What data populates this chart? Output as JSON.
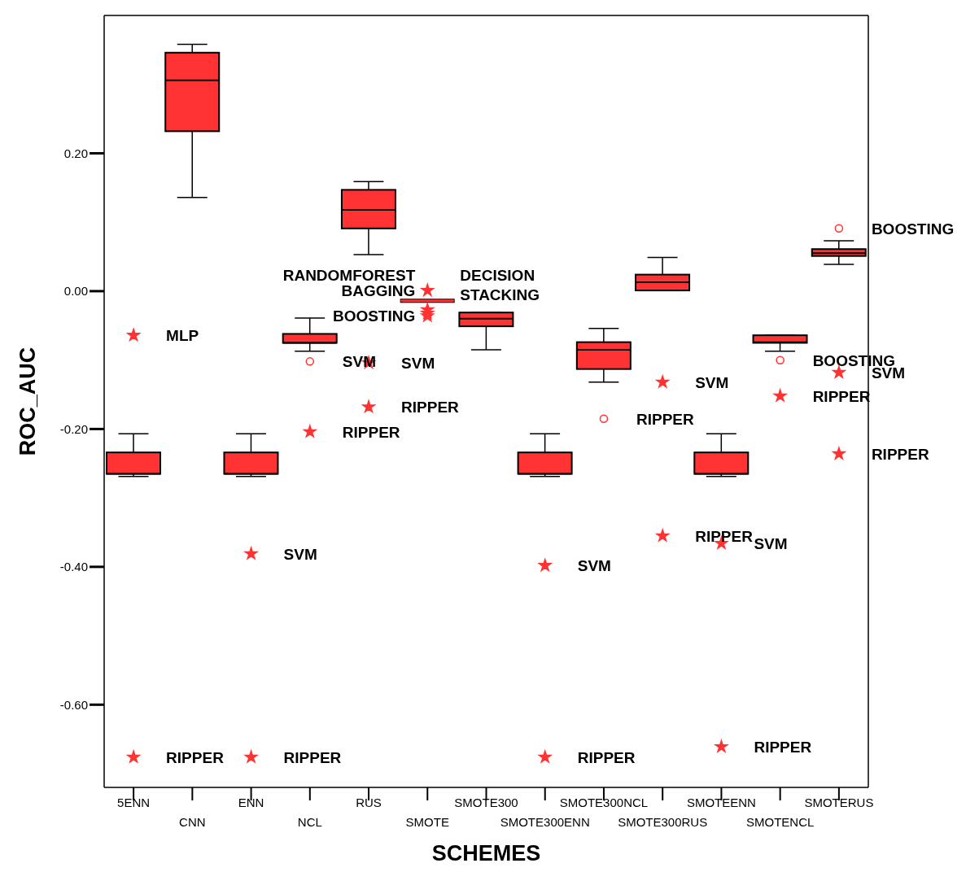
{
  "chart_data": {
    "type": "box",
    "xlabel": "SCHEMES",
    "ylabel": "ROC_AUC",
    "color": "#ff3333",
    "categories": [
      "5ENN",
      "CNN",
      "ENN",
      "NCL",
      "RUS",
      "SMOTE",
      "SMOTE300",
      "SMOTE300ENN",
      "SMOTE300NCL",
      "SMOTE300RUS",
      "SMOTEENN",
      "SMOTENCL",
      "SMOTERUS"
    ],
    "boxes": [
      {
        "low": -0.269,
        "q1": -0.265,
        "median": -0.265,
        "q3": -0.234,
        "high": -0.207
      },
      {
        "low": 0.136,
        "q1": 0.232,
        "median": 0.306,
        "q3": 0.346,
        "high": 0.358
      },
      {
        "low": -0.269,
        "q1": -0.265,
        "median": -0.265,
        "q3": -0.234,
        "high": -0.207
      },
      {
        "low": -0.087,
        "q1": -0.075,
        "median": -0.075,
        "q3": -0.062,
        "high": -0.039
      },
      {
        "low": 0.053,
        "q1": 0.091,
        "median": 0.118,
        "q3": 0.147,
        "high": 0.159
      },
      {
        "low": -0.014,
        "q1": -0.014,
        "median": -0.014,
        "q3": -0.014,
        "high": -0.014
      },
      {
        "low": -0.085,
        "q1": -0.051,
        "median": -0.04,
        "q3": -0.031,
        "high": -0.031
      },
      {
        "low": -0.269,
        "q1": -0.265,
        "median": -0.265,
        "q3": -0.234,
        "high": -0.207
      },
      {
        "low": -0.132,
        "q1": -0.113,
        "median": -0.085,
        "q3": -0.074,
        "high": -0.054
      },
      {
        "low": 0.001,
        "q1": 0.001,
        "median": 0.013,
        "q3": 0.024,
        "high": 0.049
      },
      {
        "low": -0.269,
        "q1": -0.265,
        "median": -0.265,
        "q3": -0.234,
        "high": -0.207
      },
      {
        "low": -0.087,
        "q1": -0.075,
        "median": -0.074,
        "q3": -0.064,
        "high": -0.064
      },
      {
        "low": 0.039,
        "q1": 0.051,
        "median": 0.055,
        "q3": 0.061,
        "high": 0.073
      }
    ],
    "series": [
      {
        "type": "scatter",
        "marker": "star",
        "color": "#ff3333",
        "x": [
          "5ENN",
          "5ENN",
          "ENN",
          "ENN",
          "NCL",
          "RUS",
          "RUS",
          "SMOTE",
          "SMOTE",
          "SMOTE",
          "SMOTE",
          "SMOTE300ENN",
          "SMOTE300ENN",
          "SMOTE300RUS",
          "SMOTE300RUS",
          "SMOTEENN",
          "SMOTEENN",
          "SMOTENCL",
          "SMOTERUS",
          "SMOTERUS"
        ],
        "values": [
          -0.064,
          -0.676,
          -0.381,
          -0.676,
          -0.204,
          -0.104,
          -0.168,
          0.001,
          -0.027,
          -0.032,
          -0.036,
          -0.398,
          -0.676,
          -0.132,
          -0.355,
          -0.366,
          -0.661,
          -0.152,
          -0.118,
          -0.236
        ]
      },
      {
        "type": "scatter",
        "marker": "circle",
        "color": "#ff3333",
        "x": [
          "NCL",
          "SMOTE300NCL",
          "SMOTENCL",
          "SMOTERUS"
        ],
        "values": [
          -0.102,
          -0.185,
          -0.1,
          0.091
        ]
      }
    ],
    "ylim": [
      -0.72,
      0.4
    ],
    "yticks": [
      {
        "value": 0.2,
        "label": "0.20"
      },
      {
        "value": 0.0,
        "label": "0.00"
      },
      {
        "value": -0.2,
        "label": "-0.20"
      },
      {
        "value": -0.4,
        "label": "-0.40"
      },
      {
        "value": -0.6,
        "label": "-0.60"
      }
    ],
    "annotations": [
      {
        "text": "MLP",
        "x": "5ENN",
        "y": -0.064
      },
      {
        "text": "RIPPER",
        "x": "5ENN",
        "y": -0.676
      },
      {
        "text": "SVM",
        "x": "ENN",
        "y": -0.381
      },
      {
        "text": "RIPPER",
        "x": "ENN",
        "y": -0.676
      },
      {
        "text": "SVM",
        "x": "NCL",
        "y": -0.102
      },
      {
        "text": "RIPPER",
        "x": "NCL",
        "y": -0.204
      },
      {
        "text": "SVM",
        "x": "RUS",
        "y": -0.104
      },
      {
        "text": "RIPPER",
        "x": "RUS",
        "y": -0.168
      },
      {
        "text": "BAGGING",
        "x": "SMOTE",
        "y": 0.001
      },
      {
        "text": "DECISION",
        "x": "SMOTE",
        "y": 0.001
      },
      {
        "text": "RANDOMFOREST",
        "x": "SMOTE",
        "y": 0.001
      },
      {
        "text": "STACKING",
        "x": "SMOTE",
        "y": -0.027
      },
      {
        "text": "BOOSTING",
        "x": "SMOTE",
        "y": -0.036
      },
      {
        "text": "SVM",
        "x": "SMOTE300ENN",
        "y": -0.398
      },
      {
        "text": "RIPPER",
        "x": "SMOTE300ENN",
        "y": -0.676
      },
      {
        "text": "RIPPER",
        "x": "SMOTE300NCL",
        "y": -0.185
      },
      {
        "text": "SVM",
        "x": "SMOTE300RUS",
        "y": -0.132
      },
      {
        "text": "RIPPER",
        "x": "SMOTE300RUS",
        "y": -0.355
      },
      {
        "text": "SVM",
        "x": "SMOTEENN",
        "y": -0.366
      },
      {
        "text": "RIPPER",
        "x": "SMOTEENN",
        "y": -0.661
      },
      {
        "text": "BOOSTING",
        "x": "SMOTENCL",
        "y": -0.1
      },
      {
        "text": "RIPPER",
        "x": "SMOTENCL",
        "y": -0.152
      },
      {
        "text": "BOOSTING",
        "x": "SMOTERUS",
        "y": 0.091
      },
      {
        "text": "SVM",
        "x": "SMOTERUS",
        "y": -0.118
      },
      {
        "text": "RIPPER",
        "x": "SMOTERUS",
        "y": -0.236
      }
    ]
  }
}
